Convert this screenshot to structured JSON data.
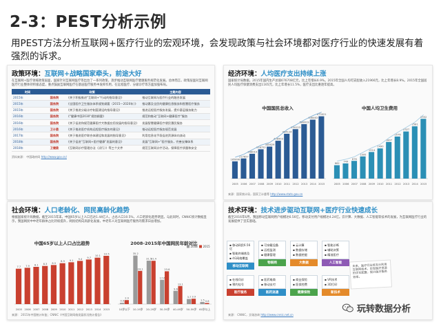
{
  "slide": {
    "title": "2-3：PEST分析示例",
    "intro": "用PEST方法分析互联网+医疗行业的宏观环境，会发现政策与社会环境都对医疗行业的快速发展有着强烈的诉求。"
  },
  "panels": {
    "policy": {
      "head_prefix": "政策环境：",
      "head_highlight": "互联网+战略国家牵头，前途大好",
      "body": "在互联网+医疗领域政策层面，国家针对互联网医疗等出台了一系列政策，逐步推动互联网医疗健康服务规范化发展。总体而言，政策层面对互联网医疗行业整体持积极态度，重点鼓励互联网医疗在基层医疗服务中发挥作用，在远程医疗、分级诊疗等方面加强布局。",
      "table_headers": [
        "时间",
        "政策",
        "主题内容"
      ],
      "rows": [
        {
          "year": "2015年",
          "cat": "国务院",
          "policy": "《关于积极推进\"互联网+\"行动的指导意见》",
          "content": "推动互联网与医疗行业的融合发展"
        },
        {
          "year": "2015年",
          "cat": "国务院",
          "policy": "《全国医疗卫生服务体系规划纲要（2015—2020年）》",
          "content": "推动惠及全民的健康信息服务和智慧医疗服务"
        },
        {
          "year": "2015年",
          "cat": "国务院",
          "policy": "《关于推进分级诊疗制度建设的指导意见》",
          "content": "推进远程医疗服务发展，提升基层服务能力"
        },
        {
          "year": "2016年",
          "cat": "国务院",
          "policy": "《\"健康中国2030\"规划纲要》",
          "content": "规范和推动\"互联网+健康医疗\"服务"
        },
        {
          "year": "2016年",
          "cat": "国务院",
          "policy": "《关于促进和规范健康医疗大数据应用发展的指导意见》",
          "content": "发展智慧健康医疗便民惠民服务"
        },
        {
          "year": "2016年",
          "cat": "卫计委",
          "policy": "《关于推进医疗机构远程医疗服务的意见》",
          "content": "推动远程医疗服务规范发展"
        },
        {
          "year": "2017年",
          "cat": "国务院",
          "policy": "《关于推进医疗联合体建设和发展的指导意见》",
          "content": "利用信息化手段促进资源纵向流动"
        },
        {
          "year": "2018年",
          "cat": "国务院",
          "policy": "《关于促进\"互联网+医疗健康\"发展的意见》",
          "content": "发展\"互联网+\"医疗服务，完善支撑体系"
        },
        {
          "year": "2018年",
          "cat": "卫健委",
          "policy": "《互联网诊疗管理办法（试行）》等三个文件",
          "content": "规范互联网诊疗活动，保障医疗质量和安全"
        }
      ],
      "source_label": "资料来源：",
      "source_text": "中国政府网",
      "source_link": "http://www.gov.cn/"
    },
    "economy": {
      "head_prefix": "经济环境：",
      "head_highlight": "人均医疗支出持续上涨",
      "body": "国家统计局数据，2015年国内生产总值676708亿元，比上年增长6.9%。2015年全国人均可支配收入21966元，比上年增长8.9%。2015年全国居民人均医疗保健消费支出1165元，比上年增长11.5%，医疗支出比重逐年提高。",
      "source_label": "来源：国家统计局，国家卫计委等",
      "source_text": "",
      "source_link": "http://www.stats.gov.cn"
    },
    "society": {
      "head_prefix": "社会环境：",
      "head_highlight": "人口老龄化、网民高龄化趋势",
      "body": "根据国家统计局数据，截至2015年末，中国65岁以上人口已达1.44亿人，占总人口10.5%，人口老龄化趋势明显。与此同时，CNNIC统计数据显示，我国网民中中老年群体占比持续提升，网民结构向高龄化发展，中老年人对互联网医疗服务的需求日益增加。",
      "source_label": "来源：",
      "source_text": "2015年中国统计年鉴；CNNIC《中国互联网络发展状况统计报告》",
      "source_link": ""
    },
    "tech": {
      "head_prefix": "技术环境：",
      "head_highlight": "技术进步驱动互联网+医疗行业快速成长",
      "body": "截至2016年6月，我国移动互联网用户规模达6.56亿，移动支付用户规模达4.24亿。云计算、大数据、人工智能等技术的发展，为互联网医疗行业的发展提供了坚实基础。",
      "source_label": "来源：",
      "source_text": "CNNIC，艾瑞咨询",
      "source_link": "http://www.cnnic.net.cn"
    }
  },
  "chart_data": [
    {
      "type": "bar",
      "title": "中国国民总收入",
      "categories": [
        "2005",
        "2006",
        "2007",
        "2008",
        "2009",
        "2010",
        "2011",
        "2012",
        "2013",
        "2014",
        "2015"
      ],
      "values": [
        185896,
        217657,
        268019,
        316752,
        345629,
        408903,
        484124,
        534123,
        588019,
        636463,
        673021
      ],
      "ylim": [
        0,
        700000
      ]
    },
    {
      "type": "bar",
      "title": "中国人均卫生费用",
      "categories": [
        "2005",
        "2006",
        "2007",
        "2008",
        "2009",
        "2010",
        "2011",
        "2012",
        "2013",
        "2014",
        "2015"
      ],
      "values": [
        662,
        749,
        876,
        1095,
        1314,
        1490,
        1807,
        2076,
        2327,
        2581,
        2952
      ],
      "ylim": [
        0,
        3200
      ]
    },
    {
      "type": "bar",
      "title": "中国65岁以上人口占比趋势",
      "categories": [
        "2005",
        "2006",
        "2007",
        "2008",
        "2009",
        "2010",
        "2011",
        "2012",
        "2013",
        "2014",
        "2015"
      ],
      "values": [
        7.7,
        7.9,
        8.1,
        8.3,
        8.5,
        8.9,
        9.1,
        9.4,
        9.7,
        10.1,
        10.5
      ],
      "ylim": [
        0,
        12
      ]
    },
    {
      "type": "bar",
      "title": "2008-2015年中国网民年龄对比",
      "categories": [
        "10岁以下",
        "10-19岁",
        "20-29岁",
        "30-39岁",
        "40-49岁",
        "50-59岁",
        "60岁以上"
      ],
      "series": [
        {
          "name": "2008",
          "values": [
            0.9,
            35.2,
            31.5,
            17.6,
            9.6,
            3.7,
            1.5
          ]
        },
        {
          "name": "2015",
          "values": [
            2.9,
            24.1,
            31.4,
            23.8,
            13.1,
            3.9,
            0.8
          ]
        }
      ],
      "ylim": [
        0,
        40
      ]
    }
  ],
  "tech_boxes": [
    {
      "items": [
        "移动网民6.56亿",
        "智能终端普及",
        "4G网络覆盖"
      ],
      "tag": "移动互联网",
      "color": "#2f8fc7"
    },
    {
      "items": [
        "可穿戴设备",
        "远程监测",
        "健康管理"
      ],
      "tag": "物联网",
      "color": "#4ba34b"
    },
    {
      "items": [
        "云计算",
        "数据存储",
        "数据挖掘"
      ],
      "tag": "大数据",
      "color": "#e48a2a"
    },
    {
      "items": [
        "智能诊断",
        "辅助决策",
        "精准医疗"
      ],
      "tag": "人工智能",
      "color": "#8e5ab5"
    }
  ],
  "tech_boxes_row2": [
    {
      "items": [
        "在线问诊",
        "预约挂号"
      ],
      "tag": "医疗服务",
      "color": "#c9402f"
    },
    {
      "items": [
        "医药电商",
        "移动支付"
      ],
      "tag": "医药流通",
      "color": "#2f8fc7"
    },
    {
      "items": [
        "商业保险",
        "医保控费"
      ],
      "tag": "健康保险",
      "color": "#4ba34b"
    },
    {
      "items": [
        "VR技术",
        "3D打印"
      ],
      "tag": "新技术",
      "color": "#e48a2a"
    }
  ],
  "note_text": "未来，医疗行业将充分利用互联网技术，实现医疗资源的优化配置，提升医疗服务效率。",
  "watermark": {
    "text": "玩转数据分析"
  }
}
